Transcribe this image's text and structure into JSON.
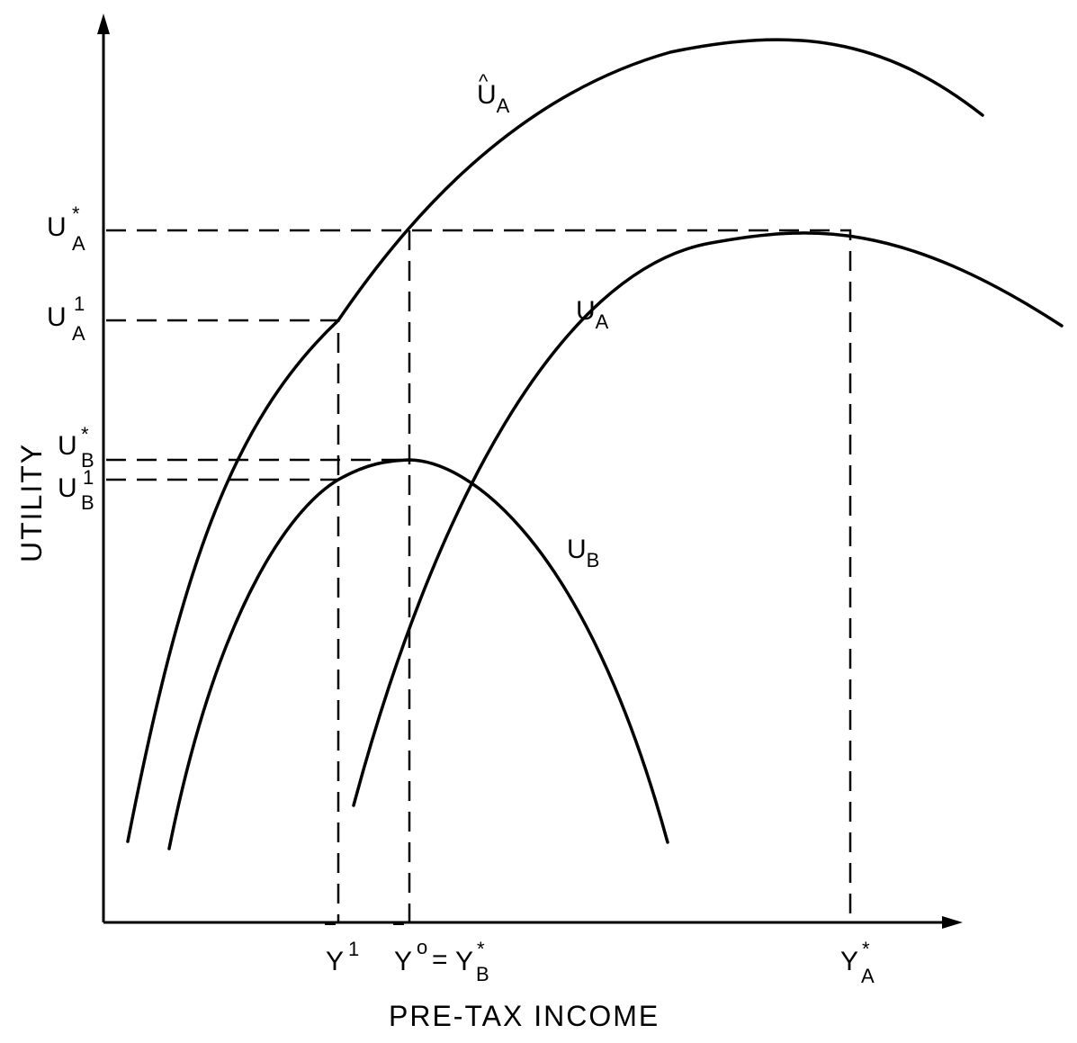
{
  "axes": {
    "x_title": "PRE-TAX INCOME",
    "y_title": "UTILITY"
  },
  "curves": {
    "u_a_hat": {
      "main": "U",
      "hat": "^",
      "sub": "A"
    },
    "u_a": {
      "main": "U",
      "sub": "A"
    },
    "u_b": {
      "main": "U",
      "sub": "B"
    }
  },
  "y_ticks": {
    "u_a_star": {
      "main": "U",
      "sup": "*",
      "sub": "A"
    },
    "u_a_one": {
      "main": "U",
      "sup": "1",
      "sub": "A"
    },
    "u_b_star": {
      "main": "U",
      "sup": "*",
      "sub": "B"
    },
    "u_b_one": {
      "main": "U",
      "sup": "1",
      "sub": "B"
    }
  },
  "x_ticks": {
    "y_bar_one": {
      "main": "Y",
      "bar": "‾",
      "sup": "1"
    },
    "y_bar_zero": {
      "main": "Y",
      "bar": "‾",
      "sup": "o",
      "eq": "=",
      "main2": "Y",
      "sup2": "*",
      "sub2": "B"
    },
    "y_a_star": {
      "main": "Y",
      "sup": "*",
      "sub": "A"
    }
  }
}
